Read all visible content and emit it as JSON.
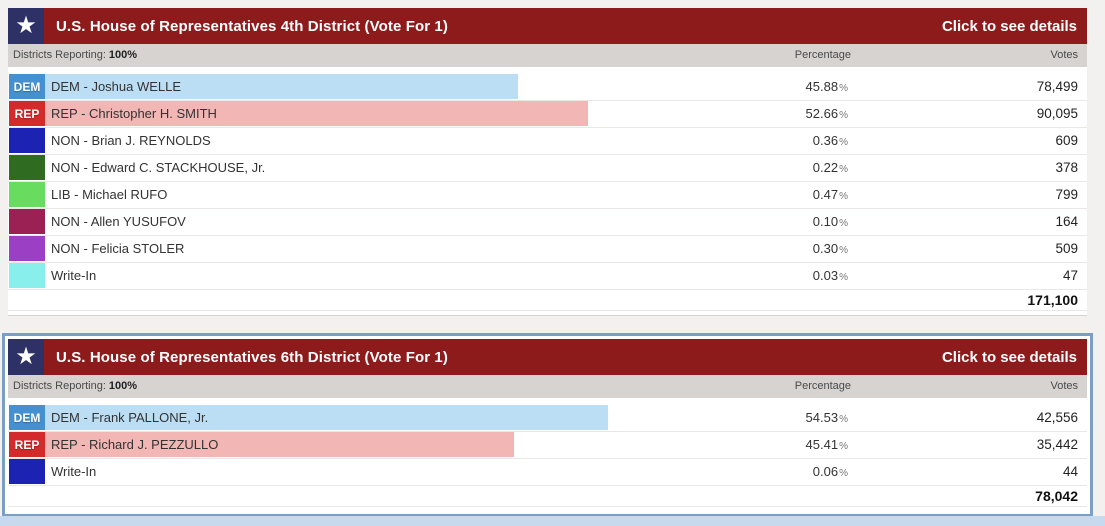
{
  "icons": {
    "star": "★"
  },
  "labels": {
    "percent_suffix": "%"
  },
  "colors": {
    "header_bg": "#8e1b1b",
    "star_box_bg": "#2d3166",
    "selected_border": "#7d9ec3",
    "bottom_strip": "#c7d9ec",
    "dem_bar": "#bcdef5",
    "rep_bar": "#f2b6b4"
  },
  "contests": [
    {
      "title": "U.S. House of Representatives 4th District (Vote For 1)",
      "details_link": "Click to see details",
      "reporting_label": "Districts Reporting:",
      "reporting_value": "100%",
      "columns": {
        "percentage": "Percentage",
        "votes": "Votes"
      },
      "selected": false,
      "total_votes": "171,100",
      "rows": [
        {
          "swatch_label": "DEM",
          "swatch_color": "#4590d0",
          "candidate": "DEM - Joshua WELLE",
          "percentage": "45.88",
          "bar_pct": 45.88,
          "bar_color": "#bcdef5",
          "votes": "78,499"
        },
        {
          "swatch_label": "REP",
          "swatch_color": "#d32b2b",
          "candidate": "REP - Christopher H. SMITH",
          "percentage": "52.66",
          "bar_pct": 52.66,
          "bar_color": "#f2b6b4",
          "votes": "90,095"
        },
        {
          "swatch_label": "",
          "swatch_color": "#1c23b2",
          "candidate": "NON - Brian J. REYNOLDS",
          "percentage": "0.36",
          "bar_pct": 0,
          "bar_color": null,
          "votes": "609"
        },
        {
          "swatch_label": "",
          "swatch_color": "#2f6b21",
          "candidate": "NON - Edward C. STACKHOUSE, Jr.",
          "percentage": "0.22",
          "bar_pct": 0,
          "bar_color": null,
          "votes": "378"
        },
        {
          "swatch_label": "",
          "swatch_color": "#68dc5f",
          "candidate": "LIB - Michael RUFO",
          "percentage": "0.47",
          "bar_pct": 0,
          "bar_color": null,
          "votes": "799"
        },
        {
          "swatch_label": "",
          "swatch_color": "#9b2155",
          "candidate": "NON - Allen YUSUFOV",
          "percentage": "0.10",
          "bar_pct": 0,
          "bar_color": null,
          "votes": "164"
        },
        {
          "swatch_label": "",
          "swatch_color": "#9b40c5",
          "candidate": "NON - Felicia STOLER",
          "percentage": "0.30",
          "bar_pct": 0,
          "bar_color": null,
          "votes": "509"
        },
        {
          "swatch_label": "",
          "swatch_color": "#89efec",
          "candidate": "Write-In",
          "percentage": "0.03",
          "bar_pct": 0,
          "bar_color": null,
          "votes": "47"
        }
      ]
    },
    {
      "title": "U.S. House of Representatives 6th District (Vote For 1)",
      "details_link": "Click to see details",
      "reporting_label": "Districts Reporting:",
      "reporting_value": "100%",
      "columns": {
        "percentage": "Percentage",
        "votes": "Votes"
      },
      "selected": true,
      "total_votes": "78,042",
      "rows": [
        {
          "swatch_label": "DEM",
          "swatch_color": "#4590d0",
          "candidate": "DEM - Frank PALLONE, Jr.",
          "percentage": "54.53",
          "bar_pct": 54.53,
          "bar_color": "#bcdef5",
          "votes": "42,556"
        },
        {
          "swatch_label": "REP",
          "swatch_color": "#d32b2b",
          "candidate": "REP - Richard J. PEZZULLO",
          "percentage": "45.41",
          "bar_pct": 45.41,
          "bar_color": "#f2b6b4",
          "votes": "35,442"
        },
        {
          "swatch_label": "",
          "swatch_color": "#1c23b2",
          "candidate": "Write-In",
          "percentage": "0.06",
          "bar_pct": 0,
          "bar_color": null,
          "votes": "44"
        }
      ]
    }
  ]
}
